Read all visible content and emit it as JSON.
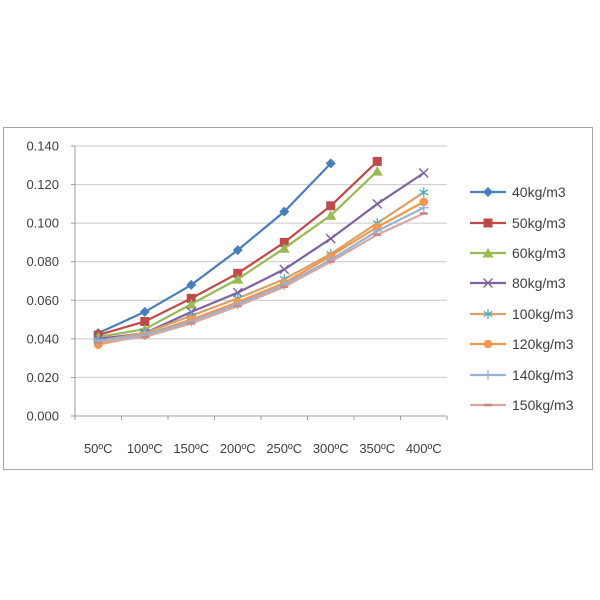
{
  "chart_data": {
    "type": "line",
    "title": "",
    "xlabel": "",
    "ylabel": "",
    "categories": [
      "50ºC",
      "100ºC",
      "150ºC",
      "200ºC",
      "250ºC",
      "300ºC",
      "350ºC",
      "400ºC"
    ],
    "y_ticks": [
      "0.000",
      "0.020",
      "0.040",
      "0.060",
      "0.080",
      "0.100",
      "0.120",
      "0.140"
    ],
    "ylim": [
      0,
      0.14
    ],
    "ytick_step": 0.02,
    "grid": true,
    "legend_position": "right",
    "series": [
      {
        "name": "40kg/m3",
        "color": "#4A7EBB",
        "marker": "diamond",
        "marker_color": "#4A7EBB",
        "values": [
          0.043,
          0.054,
          0.068,
          0.086,
          0.106,
          0.131
        ]
      },
      {
        "name": "50kg/m3",
        "color": "#BE4B48",
        "marker": "square",
        "marker_color": "#BE4B48",
        "values": [
          0.042,
          0.049,
          0.061,
          0.074,
          0.09,
          0.109,
          0.132
        ]
      },
      {
        "name": "60kg/m3",
        "color": "#98B954",
        "marker": "triangle",
        "marker_color": "#98B954",
        "values": [
          0.041,
          0.045,
          0.058,
          0.071,
          0.087,
          0.104,
          0.127
        ]
      },
      {
        "name": "80kg/m3",
        "color": "#7E62A0",
        "marker": "x",
        "marker_color": "#7E62A0",
        "values": [
          0.04,
          0.043,
          0.054,
          0.064,
          0.076,
          0.092,
          0.11,
          0.126
        ]
      },
      {
        "name": "100kg/m3",
        "color": "#D6A269",
        "marker": "asterisk",
        "marker_color": "#4BACC6",
        "values": [
          0.039,
          0.043,
          0.052,
          0.061,
          0.071,
          0.084,
          0.1,
          0.116
        ]
      },
      {
        "name": "120kg/m3",
        "color": "#F79646",
        "marker": "circle",
        "marker_color": "#F79646",
        "values": [
          0.037,
          0.042,
          0.05,
          0.059,
          0.069,
          0.083,
          0.098,
          0.111
        ]
      },
      {
        "name": "140kg/m3",
        "color": "#95B3D7",
        "marker": "plus",
        "marker_color": "#95B3D7",
        "values": [
          0.039,
          0.042,
          0.049,
          0.058,
          0.068,
          0.081,
          0.096,
          0.108
        ]
      },
      {
        "name": "150kg/m3",
        "color": "#D8A7A2",
        "marker": "dash",
        "marker_color": "#C98B84",
        "values": [
          0.038,
          0.041,
          0.048,
          0.057,
          0.067,
          0.08,
          0.094,
          0.105
        ]
      }
    ],
    "colors": {
      "grid": "#C9C9C9",
      "axis": "#9C9C9C",
      "text": "#3F3F3F",
      "frame_border": "#A6A6A6",
      "background": "#FFFFFF"
    }
  }
}
